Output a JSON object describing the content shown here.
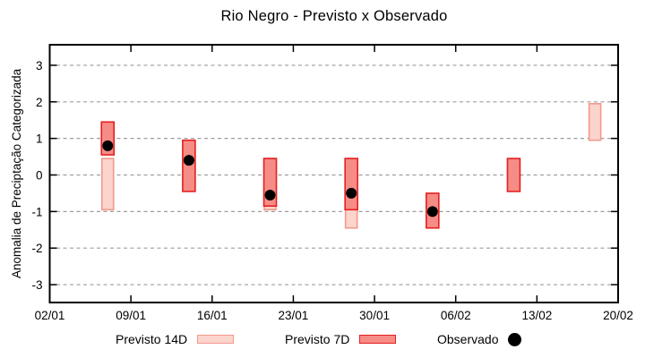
{
  "chart_data": {
    "type": "bar",
    "subtype": "range-bars-with-observed-points",
    "title": "Rio Negro - Previsto x Observado",
    "xlabel": "",
    "ylabel": "Anomalia de Preciptação Categorizada",
    "x_tick_labels": [
      "02/01",
      "09/01",
      "16/01",
      "23/01",
      "30/01",
      "06/02",
      "13/02",
      "20/02"
    ],
    "x_tick_days": [
      0,
      7,
      14,
      21,
      28,
      35,
      42,
      49
    ],
    "xlim_days": [
      0,
      49
    ],
    "y_ticks": [
      3,
      2,
      1,
      0,
      -1,
      -2,
      -3
    ],
    "y_tick_labels": [
      "3",
      "2",
      "1",
      "0",
      "-1",
      "-2",
      "-3"
    ],
    "ylim": [
      -3.55,
      3.55
    ],
    "grid": "horizontal-dashed",
    "grid_color": "#9e9e9e",
    "axis_color": "#000000",
    "legend_position": "bottom",
    "series": [
      {
        "name": "Previsto 14D",
        "kind": "range",
        "fill": "#fbd4cc",
        "stroke": "#f2998d",
        "points": [
          {
            "day": 5,
            "date": "07/01",
            "low": -0.95,
            "high": 0.45
          },
          {
            "day": 19,
            "date": "21/01",
            "low": -0.95,
            "high": 0.45
          },
          {
            "day": 26,
            "date": "28/01",
            "low": -1.45,
            "high": 0.45
          },
          {
            "day": 47,
            "date": "18/02",
            "low": 0.95,
            "high": 1.95
          }
        ]
      },
      {
        "name": "Previsto 7D",
        "kind": "range",
        "fill": "#f68c86",
        "stroke": "#e51f1f",
        "points": [
          {
            "day": 5,
            "date": "07/01",
            "low": 0.55,
            "high": 1.45
          },
          {
            "day": 12,
            "date": "14/01",
            "low": -0.45,
            "high": 0.95
          },
          {
            "day": 19,
            "date": "21/01",
            "low": -0.85,
            "high": 0.45
          },
          {
            "day": 26,
            "date": "28/01",
            "low": -0.95,
            "high": 0.45
          },
          {
            "day": 33,
            "date": "04/02",
            "low": -1.45,
            "high": -0.5
          },
          {
            "day": 40,
            "date": "11/02",
            "low": -0.45,
            "high": 0.45
          }
        ]
      },
      {
        "name": "Observado",
        "kind": "point",
        "color": "#000000",
        "points": [
          {
            "day": 5,
            "date": "07/01",
            "value": 0.8
          },
          {
            "day": 12,
            "date": "14/01",
            "value": 0.4
          },
          {
            "day": 19,
            "date": "21/01",
            "value": -0.55
          },
          {
            "day": 26,
            "date": "28/01",
            "value": -0.5
          },
          {
            "day": 33,
            "date": "04/02",
            "value": -1.0
          }
        ]
      }
    ]
  }
}
